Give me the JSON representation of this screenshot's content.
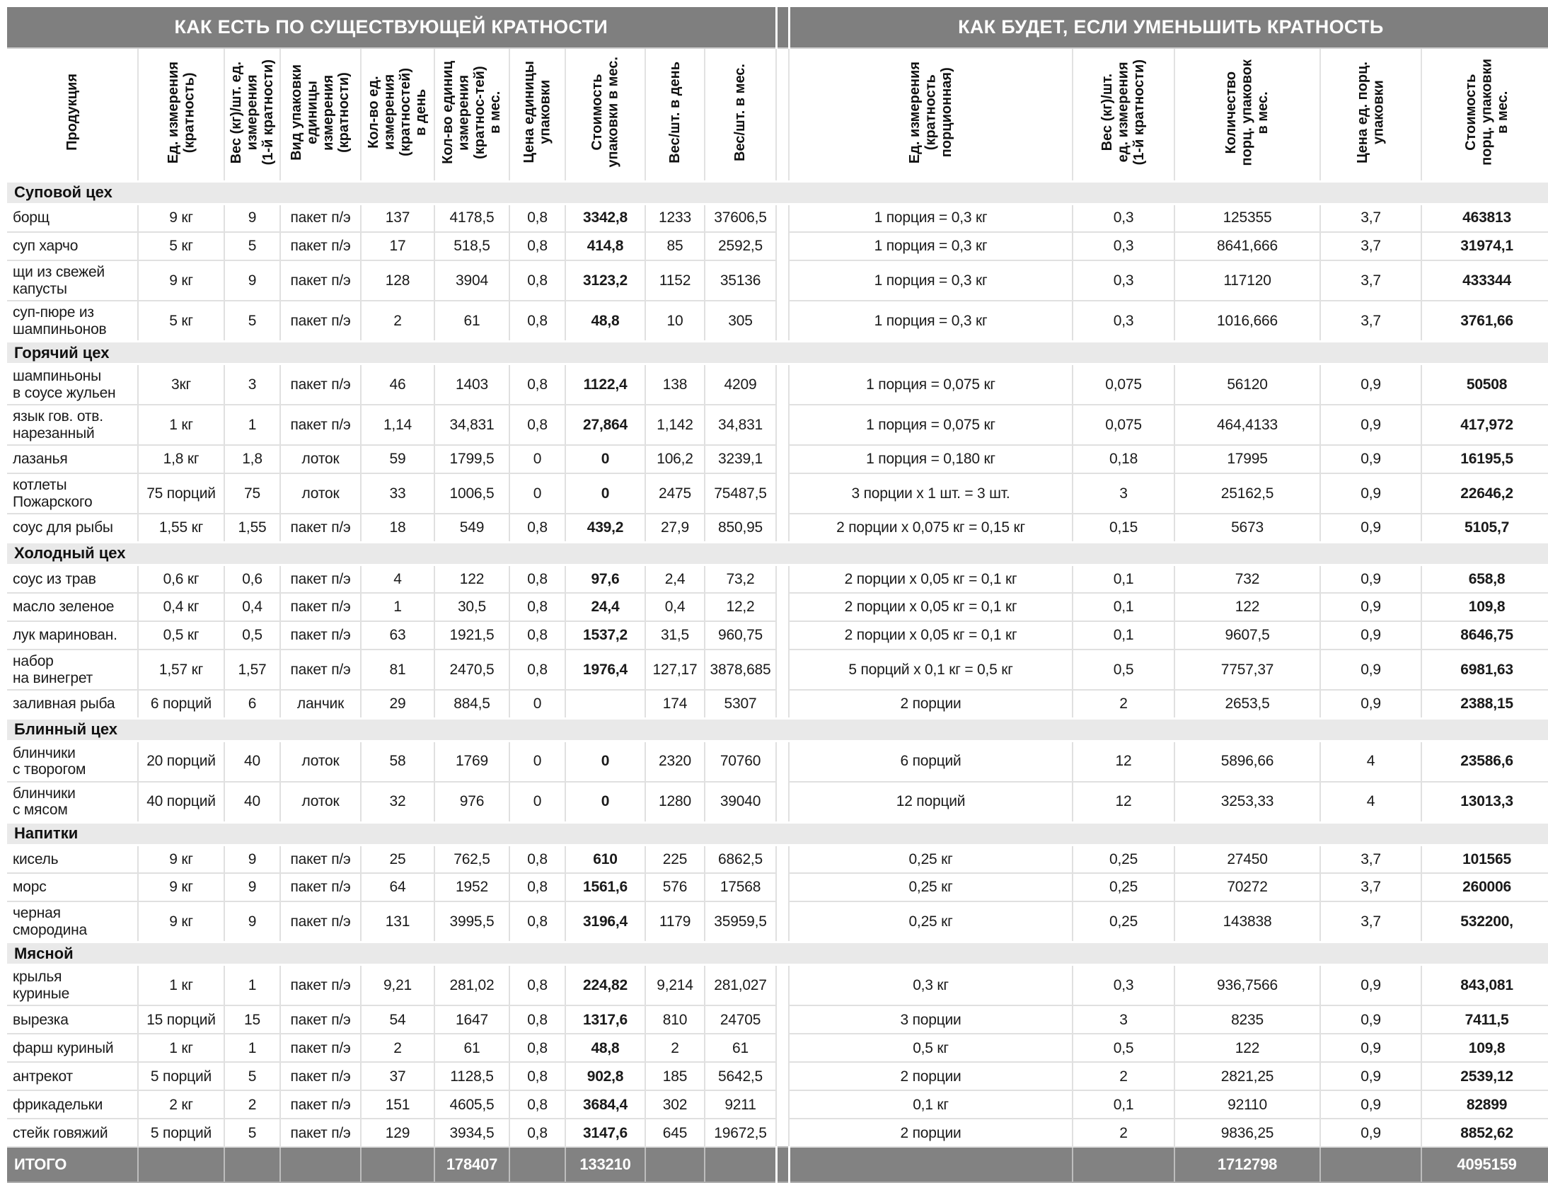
{
  "colors": {
    "band_bg": "#7f7f7f",
    "category_bg": "#e9e9e9",
    "total_bg": "#828282"
  },
  "table": {
    "band_left": "КАК ЕСТЬ ПО СУЩЕСТВУЮЩЕЙ КРАТНОСТИ",
    "band_right": "КАК БУДЕТ, ЕСЛИ УМЕНЬШИТЬ КРАТНОСТЬ",
    "columns_left": [
      "Продукция",
      "Ед. измерения\n(кратность)",
      "Вес (кг)/шт. ед.\nизмерения\n(1-й кратности)",
      "Вид упаковки\nединицы\nизмерения\n(кратности)",
      "Кол-во ед.\nизмерения\n(кратностей)\nв день",
      "Кол-во единиц\nизмерения\n(кратнос-тей)\nв мес.",
      "Цена единицы\nупаковки",
      "Стоимость\nупаковки в мес.",
      "Вес/шт. в день",
      "Вес/шт. в мес."
    ],
    "columns_right": [
      "Ед. измерения\n(кратность\nпорционная)",
      "Вес (кг)/шт.\nед. измерения\n(1-й кратности)",
      "Количество\nпорц. упаковок\nв мес.",
      "Цена ед. порц.\nупаковки",
      "Стоимость\nпорц. упаковки\nв мес."
    ],
    "groups": [
      {
        "name": "Суповой цех",
        "rows": [
          {
            "product": "борщ",
            "left": [
              "9 кг",
              "9",
              "пакет п/э",
              "137",
              "4178,5",
              "0,8",
              "3342,8",
              "1233",
              "37606,5"
            ],
            "right": [
              "1 порция = 0,3 кг",
              "0,3",
              "125355",
              "3,7",
              "463813"
            ]
          },
          {
            "product": "суп харчо",
            "left": [
              "5 кг",
              "5",
              "пакет п/э",
              "17",
              "518,5",
              "0,8",
              "414,8",
              "85",
              "2592,5"
            ],
            "right": [
              "1 порция = 0,3 кг",
              "0,3",
              "8641,666",
              "3,7",
              "31974,1"
            ]
          },
          {
            "product": "щи из свежей\nкапусты",
            "left": [
              "9 кг",
              "9",
              "пакет п/э",
              "128",
              "3904",
              "0,8",
              "3123,2",
              "1152",
              "35136"
            ],
            "right": [
              "1 порция = 0,3 кг",
              "0,3",
              "117120",
              "3,7",
              "433344"
            ]
          },
          {
            "product": "суп-пюре из\nшампиньонов",
            "left": [
              "5 кг",
              "5",
              "пакет п/э",
              "2",
              "61",
              "0,8",
              "48,8",
              "10",
              "305"
            ],
            "right": [
              "1 порция = 0,3 кг",
              "0,3",
              "1016,666",
              "3,7",
              "3761,66"
            ]
          }
        ]
      },
      {
        "name": "Горячий цех",
        "rows": [
          {
            "product": "шампиньоны\nв соусе жульен",
            "left": [
              "3кг",
              "3",
              "пакет п/э",
              "46",
              "1403",
              "0,8",
              "1122,4",
              "138",
              "4209"
            ],
            "right": [
              "1 порция = 0,075 кг",
              "0,075",
              "56120",
              "0,9",
              "50508"
            ]
          },
          {
            "product": "язык гов. отв.\nнарезанный",
            "left": [
              "1 кг",
              "1",
              "пакет п/э",
              "1,14",
              "34,831",
              "0,8",
              "27,864",
              "1,142",
              "34,831"
            ],
            "right": [
              "1 порция = 0,075 кг",
              "0,075",
              "464,4133",
              "0,9",
              "417,972"
            ]
          },
          {
            "product": "лазанья",
            "left": [
              "1,8 кг",
              "1,8",
              "лоток",
              "59",
              "1799,5",
              "0",
              "0",
              "106,2",
              "3239,1"
            ],
            "right": [
              "1 порция = 0,180 кг",
              "0,18",
              "17995",
              "0,9",
              "16195,5"
            ]
          },
          {
            "product": "котлеты\nПожарского",
            "left": [
              "75 порций",
              "75",
              "лоток",
              "33",
              "1006,5",
              "0",
              "0",
              "2475",
              "75487,5"
            ],
            "right": [
              "3 порции х 1 шт. = 3 шт.",
              "3",
              "25162,5",
              "0,9",
              "22646,2"
            ]
          },
          {
            "product": "соус для рыбы",
            "left": [
              "1,55 кг",
              "1,55",
              "пакет п/э",
              "18",
              "549",
              "0,8",
              "439,2",
              "27,9",
              "850,95"
            ],
            "right": [
              "2 порции х 0,075 кг = 0,15 кг",
              "0,15",
              "5673",
              "0,9",
              "5105,7"
            ]
          }
        ]
      },
      {
        "name": "Холодный цех",
        "rows": [
          {
            "product": "соус из трав",
            "left": [
              "0,6 кг",
              "0,6",
              "пакет п/э",
              "4",
              "122",
              "0,8",
              "97,6",
              "2,4",
              "73,2"
            ],
            "right": [
              "2 порции х 0,05 кг = 0,1 кг",
              "0,1",
              "732",
              "0,9",
              "658,8"
            ]
          },
          {
            "product": "масло зеленое",
            "left": [
              "0,4 кг",
              "0,4",
              "пакет п/э",
              "1",
              "30,5",
              "0,8",
              "24,4",
              "0,4",
              "12,2"
            ],
            "right": [
              "2 порции х 0,05 кг = 0,1 кг",
              "0,1",
              "122",
              "0,9",
              "109,8"
            ]
          },
          {
            "product": "лук маринован.",
            "left": [
              "0,5 кг",
              "0,5",
              "пакет п/э",
              "63",
              "1921,5",
              "0,8",
              "1537,2",
              "31,5",
              "960,75"
            ],
            "right": [
              "2 порции х 0,05 кг = 0,1 кг",
              "0,1",
              "9607,5",
              "0,9",
              "8646,75"
            ]
          },
          {
            "product": "набор\nна винегрет",
            "left": [
              "1,57 кг",
              "1,57",
              "пакет п/э",
              "81",
              "2470,5",
              "0,8",
              "1976,4",
              "127,17",
              "3878,685"
            ],
            "right": [
              "5 порций х 0,1 кг = 0,5 кг",
              "0,5",
              "7757,37",
              "0,9",
              "6981,63"
            ]
          },
          {
            "product": "заливная рыба",
            "left": [
              "6 порций",
              "6",
              "ланчик",
              "29",
              "884,5",
              "0",
              "",
              "174",
              "5307"
            ],
            "right": [
              "2 порции",
              "2",
              "2653,5",
              "0,9",
              "2388,15"
            ]
          }
        ]
      },
      {
        "name": "Блинный цех",
        "rows": [
          {
            "product": "блинчики\nс творогом",
            "left": [
              "20 порций",
              "40",
              "лоток",
              "58",
              "1769",
              "0",
              "0",
              "2320",
              "70760"
            ],
            "right": [
              "6 порций",
              "12",
              "5896,66",
              "4",
              "23586,6"
            ]
          },
          {
            "product": "блинчики\nс мясом",
            "left": [
              "40 порций",
              "40",
              "лоток",
              "32",
              "976",
              "0",
              "0",
              "1280",
              "39040"
            ],
            "right": [
              "12 порций",
              "12",
              "3253,33",
              "4",
              "13013,3"
            ]
          }
        ]
      },
      {
        "name": "Напитки",
        "rows": [
          {
            "product": "кисель",
            "left": [
              "9 кг",
              "9",
              "пакет п/э",
              "25",
              "762,5",
              "0,8",
              "610",
              "225",
              "6862,5"
            ],
            "right": [
              "0,25 кг",
              "0,25",
              "27450",
              "3,7",
              "101565"
            ]
          },
          {
            "product": "морс",
            "left": [
              "9 кг",
              "9",
              "пакет п/э",
              "64",
              "1952",
              "0,8",
              "1561,6",
              "576",
              "17568"
            ],
            "right": [
              "0,25 кг",
              "0,25",
              "70272",
              "3,7",
              "260006"
            ]
          },
          {
            "product": "черная\nсмородина",
            "left": [
              "9 кг",
              "9",
              "пакет п/э",
              "131",
              "3995,5",
              "0,8",
              "3196,4",
              "1179",
              "35959,5"
            ],
            "right": [
              "0,25 кг",
              "0,25",
              "143838",
              "3,7",
              "532200,"
            ]
          }
        ]
      },
      {
        "name": "Мясной",
        "rows": [
          {
            "product": "крылья\nкуриные",
            "left": [
              "1 кг",
              "1",
              "пакет п/э",
              "9,21",
              "281,02",
              "0,8",
              "224,82",
              "9,214",
              "281,027"
            ],
            "right": [
              "0,3 кг",
              "0,3",
              "936,7566",
              "0,9",
              "843,081"
            ]
          },
          {
            "product": "вырезка",
            "left": [
              "15 порций",
              "15",
              "пакет п/э",
              "54",
              "1647",
              "0,8",
              "1317,6",
              "810",
              "24705"
            ],
            "right": [
              "3 порции",
              "3",
              "8235",
              "0,9",
              "7411,5"
            ]
          },
          {
            "product": "фарш куриный",
            "left": [
              "1 кг",
              "1",
              "пакет п/э",
              "2",
              "61",
              "0,8",
              "48,8",
              "2",
              "61"
            ],
            "right": [
              "0,5 кг",
              "0,5",
              "122",
              "0,9",
              "109,8"
            ]
          },
          {
            "product": "антрекот",
            "left": [
              "5 порций",
              "5",
              "пакет п/э",
              "37",
              "1128,5",
              "0,8",
              "902,8",
              "185",
              "5642,5"
            ],
            "right": [
              "2 порции",
              "2",
              "2821,25",
              "0,9",
              "2539,12"
            ]
          },
          {
            "product": "фрикадельки",
            "left": [
              "2 кг",
              "2",
              "пакет п/э",
              "151",
              "4605,5",
              "0,8",
              "3684,4",
              "302",
              "9211"
            ],
            "right": [
              "0,1 кг",
              "0,1",
              "92110",
              "0,9",
              "82899"
            ]
          },
          {
            "product": "стейк говяжий",
            "left": [
              "5 порций",
              "5",
              "пакет п/э",
              "129",
              "3934,5",
              "0,8",
              "3147,6",
              "645",
              "19672,5"
            ],
            "right": [
              "2 порции",
              "2",
              "9836,25",
              "0,9",
              "8852,62"
            ]
          }
        ]
      }
    ],
    "total": {
      "label": "ИТОГО",
      "kolvo_edinic_mes": "178407",
      "stoimost_upakovki_mes": "133210",
      "kolvo_porc_upakovok_mes": "1712798",
      "stoimost_porc_upakovki_mes": "4095159"
    }
  }
}
